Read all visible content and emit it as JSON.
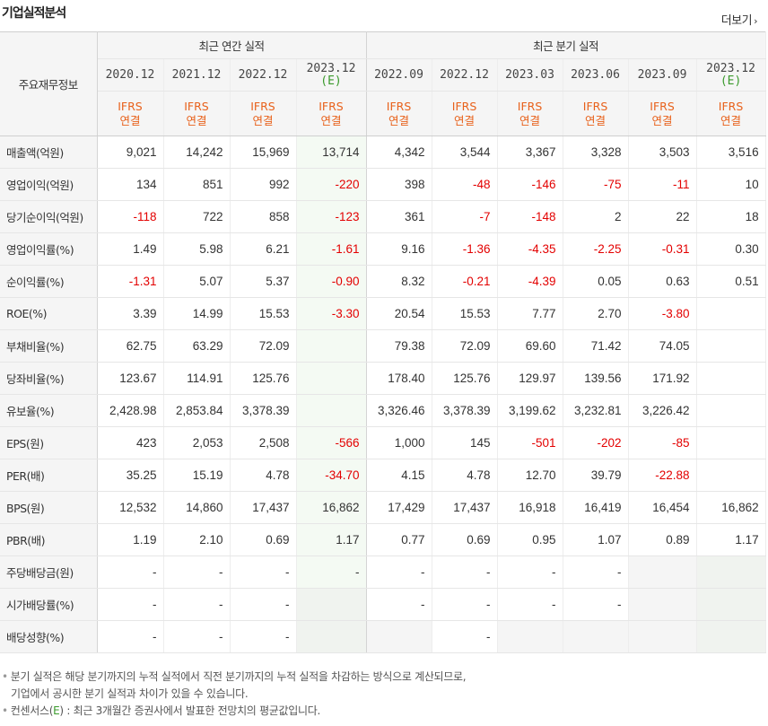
{
  "header": {
    "title": "기업실적분석",
    "more_label": "더보기",
    "more_icon": "chevron-right-icon"
  },
  "table": {
    "corner_label": "주요재무정보",
    "group_annual": "최근 연간 실적",
    "group_quarter": "최근 분기 실적",
    "periods": [
      {
        "label": "2020.12",
        "est": ""
      },
      {
        "label": "2021.12",
        "est": ""
      },
      {
        "label": "2022.12",
        "est": ""
      },
      {
        "label": "2023.12",
        "est": "(E)"
      },
      {
        "label": "2022.09",
        "est": ""
      },
      {
        "label": "2022.12",
        "est": ""
      },
      {
        "label": "2023.03",
        "est": ""
      },
      {
        "label": "2023.06",
        "est": ""
      },
      {
        "label": "2023.09",
        "est": ""
      },
      {
        "label": "2023.12",
        "est": "(E)"
      }
    ],
    "basis_line1": "IFRS",
    "basis_line2": "연결",
    "rows": [
      {
        "label": "매출액(억원)",
        "values": [
          "9,021",
          "14,242",
          "15,969",
          "13,714",
          "4,342",
          "3,544",
          "3,367",
          "3,328",
          "3,503",
          "3,516"
        ]
      },
      {
        "label": "영업이익(억원)",
        "values": [
          "134",
          "851",
          "992",
          "-220",
          "398",
          "-48",
          "-146",
          "-75",
          "-11",
          "10"
        ]
      },
      {
        "label": "당기순이익(억원)",
        "values": [
          "-118",
          "722",
          "858",
          "-123",
          "361",
          "-7",
          "-148",
          "2",
          "22",
          "18"
        ]
      },
      {
        "label": "영업이익률(%)",
        "values": [
          "1.49",
          "5.98",
          "6.21",
          "-1.61",
          "9.16",
          "-1.36",
          "-4.35",
          "-2.25",
          "-0.31",
          "0.30"
        ]
      },
      {
        "label": "순이익률(%)",
        "values": [
          "-1.31",
          "5.07",
          "5.37",
          "-0.90",
          "8.32",
          "-0.21",
          "-4.39",
          "0.05",
          "0.63",
          "0.51"
        ]
      },
      {
        "label": "ROE(%)",
        "values": [
          "3.39",
          "14.99",
          "15.53",
          "-3.30",
          "20.54",
          "15.53",
          "7.77",
          "2.70",
          "-3.80",
          ""
        ]
      },
      {
        "label": "부채비율(%)",
        "values": [
          "62.75",
          "63.29",
          "72.09",
          "",
          "79.38",
          "72.09",
          "69.60",
          "71.42",
          "74.05",
          ""
        ]
      },
      {
        "label": "당좌비율(%)",
        "values": [
          "123.67",
          "114.91",
          "125.76",
          "",
          "178.40",
          "125.76",
          "129.97",
          "139.56",
          "171.92",
          ""
        ]
      },
      {
        "label": "유보율(%)",
        "values": [
          "2,428.98",
          "2,853.84",
          "3,378.39",
          "",
          "3,326.46",
          "3,378.39",
          "3,199.62",
          "3,232.81",
          "3,226.42",
          ""
        ]
      },
      {
        "label": "EPS(원)",
        "values": [
          "423",
          "2,053",
          "2,508",
          "-566",
          "1,000",
          "145",
          "-501",
          "-202",
          "-85",
          ""
        ]
      },
      {
        "label": "PER(배)",
        "values": [
          "35.25",
          "15.19",
          "4.78",
          "-34.70",
          "4.15",
          "4.78",
          "12.70",
          "39.79",
          "-22.88",
          ""
        ]
      },
      {
        "label": "BPS(원)",
        "values": [
          "12,532",
          "14,860",
          "17,437",
          "16,862",
          "17,429",
          "17,437",
          "16,918",
          "16,419",
          "16,454",
          "16,862"
        ]
      },
      {
        "label": "PBR(배)",
        "values": [
          "1.19",
          "2.10",
          "0.69",
          "1.17",
          "0.77",
          "0.69",
          "0.95",
          "1.07",
          "0.89",
          "1.17"
        ]
      },
      {
        "label": "주당배당금(원)",
        "values": [
          "-",
          "-",
          "-",
          "-",
          "-",
          "-",
          "-",
          "-",
          "",
          ""
        ]
      },
      {
        "label": "시가배당률(%)",
        "values": [
          "-",
          "-",
          "-",
          "",
          "-",
          "-",
          "-",
          "-",
          "",
          ""
        ]
      },
      {
        "label": "배당성향(%)",
        "values": [
          "-",
          "-",
          "-",
          "",
          "",
          "-",
          "",
          "",
          "",
          ""
        ]
      }
    ]
  },
  "notes": {
    "line1": "분기 실적은 해당 분기까지의 누적 실적에서 직전 분기까지의 누적 실적을 차감하는 방식으로 계산되므로,",
    "line2": "기업에서 공시한 분기 실적과 차이가 있을 수 있습니다.",
    "line3_prefix": "컨센서스(",
    "line3_mark": "E",
    "line3_suffix": ") : 최근 3개월간 증권사에서 발표한 전망치의 평균값입니다."
  },
  "colors": {
    "negative": "#e30000",
    "basis": "#e8611b",
    "estimate_mark": "#3a9a2c",
    "estimate_bg": "#f4faf3",
    "header_bg": "#f5f5f5"
  }
}
